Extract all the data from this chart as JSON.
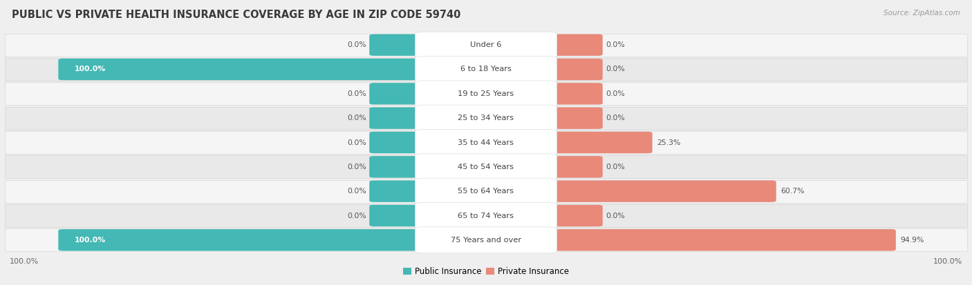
{
  "title": "PUBLIC VS PRIVATE HEALTH INSURANCE COVERAGE BY AGE IN ZIP CODE 59740",
  "source": "Source: ZipAtlas.com",
  "categories": [
    "Under 6",
    "6 to 18 Years",
    "19 to 25 Years",
    "25 to 34 Years",
    "35 to 44 Years",
    "45 to 54 Years",
    "55 to 64 Years",
    "65 to 74 Years",
    "75 Years and over"
  ],
  "public_values": [
    0.0,
    100.0,
    0.0,
    0.0,
    0.0,
    0.0,
    0.0,
    0.0,
    100.0
  ],
  "private_values": [
    0.0,
    0.0,
    0.0,
    0.0,
    25.3,
    0.0,
    60.7,
    0.0,
    94.9
  ],
  "public_color": "#44b8b4",
  "private_color": "#e8897a",
  "bg_color": "#efefef",
  "row_bg_even": "#f5f5f5",
  "row_bg_odd": "#e9e9e9",
  "title_fontsize": 10.5,
  "label_fontsize": 8.5,
  "max_value": 100.0,
  "min_bar_width": 0.04,
  "x_axis_left_label": "100.0%",
  "x_axis_right_label": "100.0%",
  "legend_public": "Public Insurance",
  "legend_private": "Private Insurance"
}
